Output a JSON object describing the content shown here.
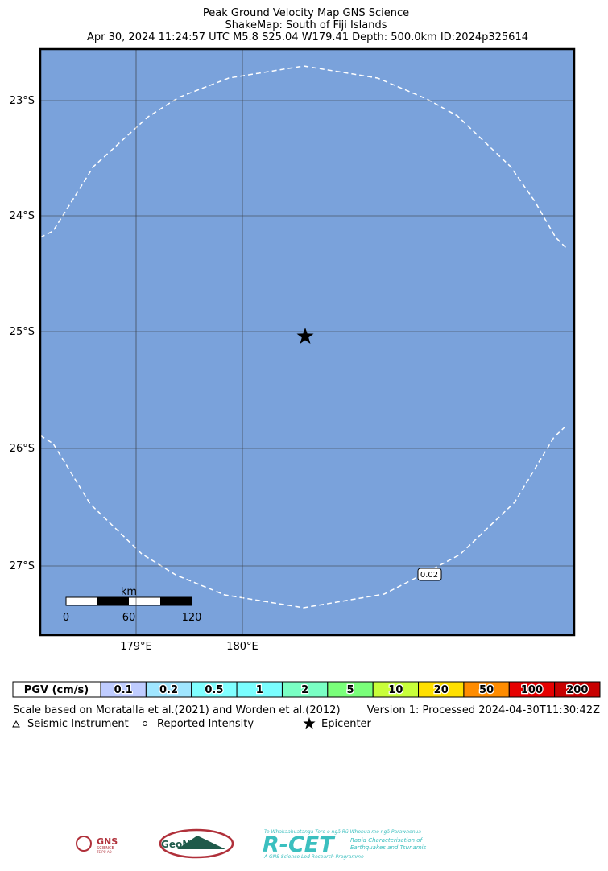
{
  "header": {
    "title": "Peak Ground Velocity Map GNS Science",
    "subtitle": "ShakeMap: South of Fiji Islands",
    "event": "Apr 30, 2024 11:24:57 UTC M5.8 S25.04 W179.41 Depth: 500.0km ID:2024p325614"
  },
  "map": {
    "lat_labels": [
      "23°S",
      "24°S",
      "25°S",
      "26°S",
      "27°S"
    ],
    "lon_labels": [
      "179°E",
      "180°E"
    ],
    "contour_label": "0.02",
    "scale_bar": {
      "unit": "km",
      "labels": [
        "0",
        "60",
        "120"
      ]
    }
  },
  "legend": {
    "title": "PGV (cm/s)",
    "cells": [
      {
        "label": "0.1",
        "color": "#bfccff"
      },
      {
        "label": "0.2",
        "color": "#a0e6ff"
      },
      {
        "label": "0.5",
        "color": "#80ffff"
      },
      {
        "label": "1",
        "color": "#7afeff"
      },
      {
        "label": "2",
        "color": "#7affc4"
      },
      {
        "label": "5",
        "color": "#7aff7a"
      },
      {
        "label": "10",
        "color": "#c8ff3a"
      },
      {
        "label": "20",
        "color": "#ffe000"
      },
      {
        "label": "50",
        "color": "#ff8c00"
      },
      {
        "label": "100",
        "color": "#e60000"
      },
      {
        "label": "200",
        "color": "#c80000"
      }
    ],
    "scale_note": "Scale based on Moratalla et al.(2021) and Worden et al.(2012)",
    "version": "Version 1: Processed 2024-04-30T11:30:42Z",
    "symbols": [
      "Seismic Instrument",
      "Reported Intensity",
      "Epicenter"
    ]
  },
  "logos": {
    "gns": "GNS",
    "gns_sub": "SCIENCE",
    "gns_maori": "TE PŪ AO",
    "geonet": "GeoNet",
    "rcet": "R-CET",
    "rcet_maori": "Te Whakaahuatanga Tere o ngā Rū Whenua me ngā Parawhenua",
    "rcet_line1": "Rapid Characterisation of",
    "rcet_line2": "Earthquakes and Tsunamis",
    "rcet_footer": "A GNS Science Led Research Programme"
  }
}
